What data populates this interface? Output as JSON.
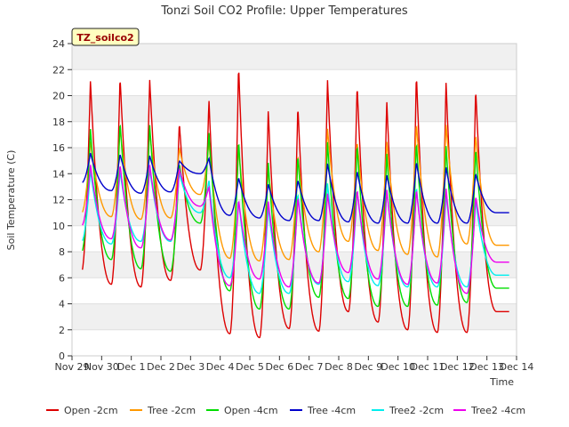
{
  "chart_data": {
    "type": "line",
    "title": "Tonzi Soil CO2 Profile: Upper Temperatures",
    "xlabel": "Time",
    "ylabel": "Soil Temperature (C)",
    "badge": "TZ_soilco2",
    "xlim": [
      0,
      15
    ],
    "ylim": [
      0,
      24
    ],
    "x_ticks": [
      {
        "v": 0,
        "label": "Nov 29"
      },
      {
        "v": 1,
        "label": "Nov 30"
      },
      {
        "v": 2,
        "label": "Dec 1"
      },
      {
        "v": 3,
        "label": "Dec 2"
      },
      {
        "v": 4,
        "label": "Dec 3"
      },
      {
        "v": 5,
        "label": "Dec 4"
      },
      {
        "v": 6,
        "label": "Dec 5"
      },
      {
        "v": 7,
        "label": "Dec 6"
      },
      {
        "v": 8,
        "label": "Dec 7"
      },
      {
        "v": 9,
        "label": "Dec 8"
      },
      {
        "v": 10,
        "label": "Dec 9"
      },
      {
        "v": 11,
        "label": "Dec 10"
      },
      {
        "v": 12,
        "label": "Dec 11"
      },
      {
        "v": 13,
        "label": "Dec 12"
      },
      {
        "v": 14,
        "label": "Dec 13"
      },
      {
        "v": 15,
        "label": "Dec 14"
      }
    ],
    "y_ticks": [
      0,
      2,
      4,
      6,
      8,
      10,
      12,
      14,
      16,
      18,
      20,
      22,
      24
    ],
    "x_range_data": [
      0.35,
      14.75
    ],
    "day_peak_phase": 0.62,
    "series": [
      {
        "name": "Open -2cm",
        "color": "#dd0000",
        "mins": [
          6.5,
          5.5,
          5.3,
          5.8,
          6.6,
          1.7,
          1.4,
          2.1,
          1.9,
          3.4,
          2.6,
          2.0,
          1.8,
          1.8,
          3.4
        ],
        "peaks": [
          21.2,
          21.5,
          21.3,
          18.0,
          19.7,
          22.4,
          18.9,
          19.3,
          21.3,
          20.9,
          19.6,
          21.7,
          21.1,
          20.6
        ]
      },
      {
        "name": "Tree -2cm",
        "color": "#ff9900",
        "mins": [
          11.0,
          10.7,
          10.5,
          10.6,
          12.4,
          7.5,
          7.3,
          7.4,
          8.0,
          8.8,
          8.1,
          7.8,
          7.6,
          8.6,
          8.5
        ],
        "peaks": [
          16.5,
          17.5,
          17.2,
          16.0,
          16.5,
          16.0,
          14.4,
          15.4,
          17.5,
          16.5,
          16.5,
          17.9,
          17.8,
          17.0
        ]
      },
      {
        "name": "Open -4cm",
        "color": "#00dd00",
        "mins": [
          8.0,
          7.4,
          6.7,
          6.5,
          10.2,
          5.0,
          3.6,
          3.6,
          4.5,
          4.4,
          3.8,
          3.8,
          3.9,
          4.1,
          5.2
        ],
        "peaks": [
          17.5,
          18.0,
          17.8,
          14.8,
          17.2,
          16.6,
          14.9,
          15.5,
          16.5,
          16.3,
          15.6,
          16.5,
          16.2,
          16.0
        ]
      },
      {
        "name": "Tree -4cm",
        "color": "#0000cc",
        "mins": [
          13.3,
          12.7,
          12.5,
          12.6,
          14.0,
          10.8,
          10.6,
          10.4,
          10.4,
          10.3,
          10.2,
          10.2,
          10.2,
          10.2,
          11.0
        ],
        "peaks": [
          15.6,
          15.5,
          15.4,
          15.0,
          15.2,
          13.7,
          13.2,
          13.5,
          14.8,
          14.2,
          13.9,
          14.9,
          14.5,
          14.0
        ]
      },
      {
        "name": "Tree2 -2cm",
        "color": "#00eeee",
        "mins": [
          8.8,
          8.6,
          8.8,
          8.8,
          11.0,
          6.0,
          4.8,
          4.8,
          5.5,
          5.7,
          5.4,
          5.3,
          5.3,
          5.3,
          6.2
        ],
        "peaks": [
          14.3,
          14.2,
          14.4,
          14.1,
          13.5,
          12.0,
          11.5,
          12.5,
          13.3,
          12.8,
          12.8,
          13.0,
          12.5,
          12.0
        ]
      },
      {
        "name": "Tree2 -4cm",
        "color": "#ee00ee",
        "mins": [
          10.0,
          9.0,
          8.3,
          8.9,
          11.5,
          5.4,
          5.9,
          5.3,
          5.6,
          6.4,
          5.9,
          5.5,
          5.6,
          4.8,
          7.2
        ],
        "peaks": [
          14.7,
          14.7,
          14.7,
          14.4,
          13.0,
          12.0,
          11.9,
          12.2,
          12.5,
          12.8,
          12.8,
          12.8,
          12.9,
          12.3
        ]
      }
    ]
  }
}
